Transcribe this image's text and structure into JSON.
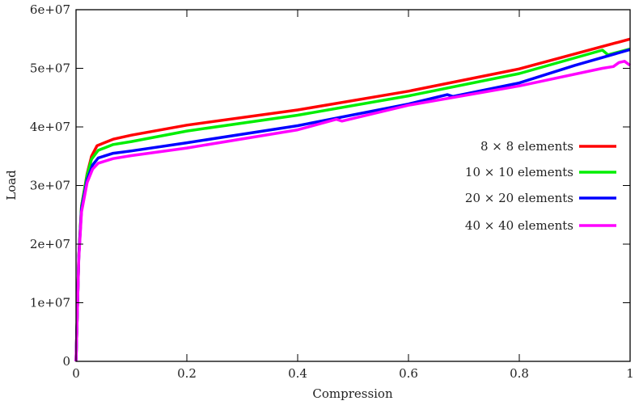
{
  "chart_data": {
    "type": "line",
    "title": "",
    "xlabel": "Compression",
    "ylabel": "Load",
    "xlim": [
      0,
      1
    ],
    "ylim": [
      0,
      60000000
    ],
    "grid": false,
    "legend_position": "right",
    "x_ticks": [
      0,
      0.2,
      0.4,
      0.6,
      0.8,
      1
    ],
    "x_tick_labels": [
      "0",
      "0.2",
      "0.4",
      "0.6",
      "0.8",
      "1"
    ],
    "y_ticks": [
      0,
      10000000,
      20000000,
      30000000,
      40000000,
      50000000,
      60000000
    ],
    "y_tick_labels": [
      "0",
      "1e+07",
      "2e+07",
      "3e+07",
      "4e+07",
      "5e+07",
      "6e+07"
    ],
    "series": [
      {
        "name": "8 × 8 elements",
        "color": "#ff0000",
        "x": [
          0,
          0.005,
          0.01,
          0.02,
          0.028,
          0.038,
          0.067,
          0.1,
          0.2,
          0.4,
          0.6,
          0.8,
          1.0
        ],
        "y": [
          0,
          18000000,
          26500000,
          32000000,
          35000000,
          36800000,
          37900000,
          38600000,
          40300000,
          42900000,
          46100000,
          49900000,
          55000000
        ]
      },
      {
        "name": "10 × 10 elements",
        "color": "#00ee00",
        "x": [
          0,
          0.005,
          0.01,
          0.02,
          0.028,
          0.04,
          0.067,
          0.1,
          0.2,
          0.4,
          0.6,
          0.8,
          0.95,
          0.96,
          1.0
        ],
        "y": [
          0,
          18000000,
          26500000,
          31800000,
          34500000,
          36000000,
          37000000,
          37500000,
          39300000,
          42000000,
          45300000,
          49100000,
          53100000,
          52300000,
          53300000
        ]
      },
      {
        "name": "20 × 20 elements",
        "color": "#0000ff",
        "x": [
          0,
          0.005,
          0.01,
          0.02,
          0.03,
          0.04,
          0.067,
          0.1,
          0.2,
          0.4,
          0.6,
          0.67,
          0.68,
          0.8,
          0.9,
          1.0
        ],
        "y": [
          0,
          17800000,
          26000000,
          31000000,
          33500000,
          34700000,
          35500000,
          35900000,
          37300000,
          40200000,
          43900000,
          45500000,
          45200000,
          47500000,
          50500000,
          53200000
        ]
      },
      {
        "name": "40 × 40 elements",
        "color": "#ff00ff",
        "x": [
          0,
          0.005,
          0.01,
          0.02,
          0.03,
          0.04,
          0.067,
          0.1,
          0.2,
          0.4,
          0.47,
          0.48,
          0.6,
          0.8,
          0.95,
          0.97,
          0.98,
          0.99,
          1.0
        ],
        "y": [
          0,
          17500000,
          25500000,
          30500000,
          32800000,
          33800000,
          34600000,
          35100000,
          36400000,
          39500000,
          41300000,
          41000000,
          43700000,
          47000000,
          50000000,
          50300000,
          51000000,
          51200000,
          50500000
        ]
      }
    ]
  }
}
